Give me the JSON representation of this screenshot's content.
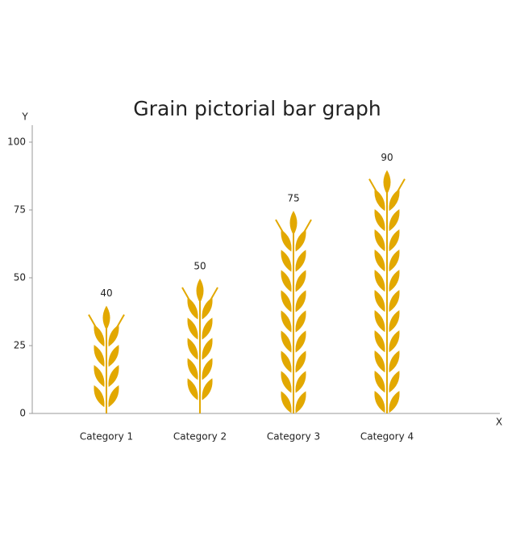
{
  "chart_data": {
    "type": "pictorial-bar",
    "title": "Grain pictorial bar graph",
    "x_label": "X",
    "y_label": "Y",
    "categories": [
      "Category 1",
      "Category 2",
      "Category 3",
      "Category 4"
    ],
    "values": [
      40,
      50,
      75,
      90
    ],
    "color": "#e2a800",
    "ylim": [
      0,
      100
    ],
    "yticks": [
      0,
      25,
      50,
      75,
      100
    ]
  }
}
